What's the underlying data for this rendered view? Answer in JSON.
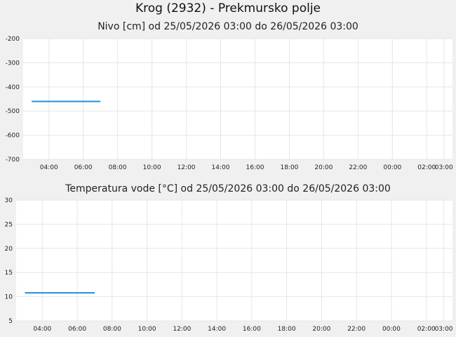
{
  "page": {
    "title": "Krog (2932) - Prekmursko polje"
  },
  "colors": {
    "background": "#f0f0f0",
    "plot_background": "#ffffff",
    "grid": "#e6e6e6",
    "series": "#1f8fdc"
  },
  "chart_data": [
    {
      "type": "line",
      "title": "Nivo [cm] od 25/05/2026 03:00 do 26/05/2026 03:00",
      "xlabel": "",
      "ylabel": "",
      "ylim": [
        -700,
        -200
      ],
      "yticks": [
        "-200",
        "-300",
        "-400",
        "-500",
        "-600",
        "-700"
      ],
      "xlim_hours": [
        2.5,
        27.5
      ],
      "xticks": [
        {
          "h": 4,
          "label": "04:00"
        },
        {
          "h": 6,
          "label": "06:00"
        },
        {
          "h": 8,
          "label": "08:00"
        },
        {
          "h": 10,
          "label": "10:00"
        },
        {
          "h": 12,
          "label": "12:00"
        },
        {
          "h": 14,
          "label": "14:00"
        },
        {
          "h": 16,
          "label": "16:00"
        },
        {
          "h": 18,
          "label": "18:00"
        },
        {
          "h": 20,
          "label": "20:00"
        },
        {
          "h": 22,
          "label": "22:00"
        },
        {
          "h": 24,
          "label": "00:00"
        },
        {
          "h": 26,
          "label": "02:00"
        },
        {
          "h": 27,
          "label": "03:00"
        }
      ],
      "grid": true,
      "series": [
        {
          "x_hours": [
            3,
            7
          ],
          "values": [
            -460,
            -460
          ]
        }
      ]
    },
    {
      "type": "line",
      "title": "Temperatura vode [°C] od 25/05/2026 03:00 do 26/05/2026 03:00",
      "xlabel": "",
      "ylabel": "",
      "ylim": [
        5,
        30
      ],
      "yticks": [
        "30",
        "25",
        "20",
        "15",
        "10",
        "5"
      ],
      "xlim_hours": [
        2.5,
        27.5
      ],
      "xticks": [
        {
          "h": 4,
          "label": "04:00"
        },
        {
          "h": 6,
          "label": "06:00"
        },
        {
          "h": 8,
          "label": "08:00"
        },
        {
          "h": 10,
          "label": "10:00"
        },
        {
          "h": 12,
          "label": "12:00"
        },
        {
          "h": 14,
          "label": "14:00"
        },
        {
          "h": 16,
          "label": "16:00"
        },
        {
          "h": 18,
          "label": "18:00"
        },
        {
          "h": 20,
          "label": "20:00"
        },
        {
          "h": 22,
          "label": "22:00"
        },
        {
          "h": 24,
          "label": "00:00"
        },
        {
          "h": 26,
          "label": "02:00"
        },
        {
          "h": 27,
          "label": "03:00"
        }
      ],
      "grid": true,
      "series": [
        {
          "x_hours": [
            3,
            7
          ],
          "values": [
            10.8,
            10.8
          ]
        }
      ]
    }
  ]
}
